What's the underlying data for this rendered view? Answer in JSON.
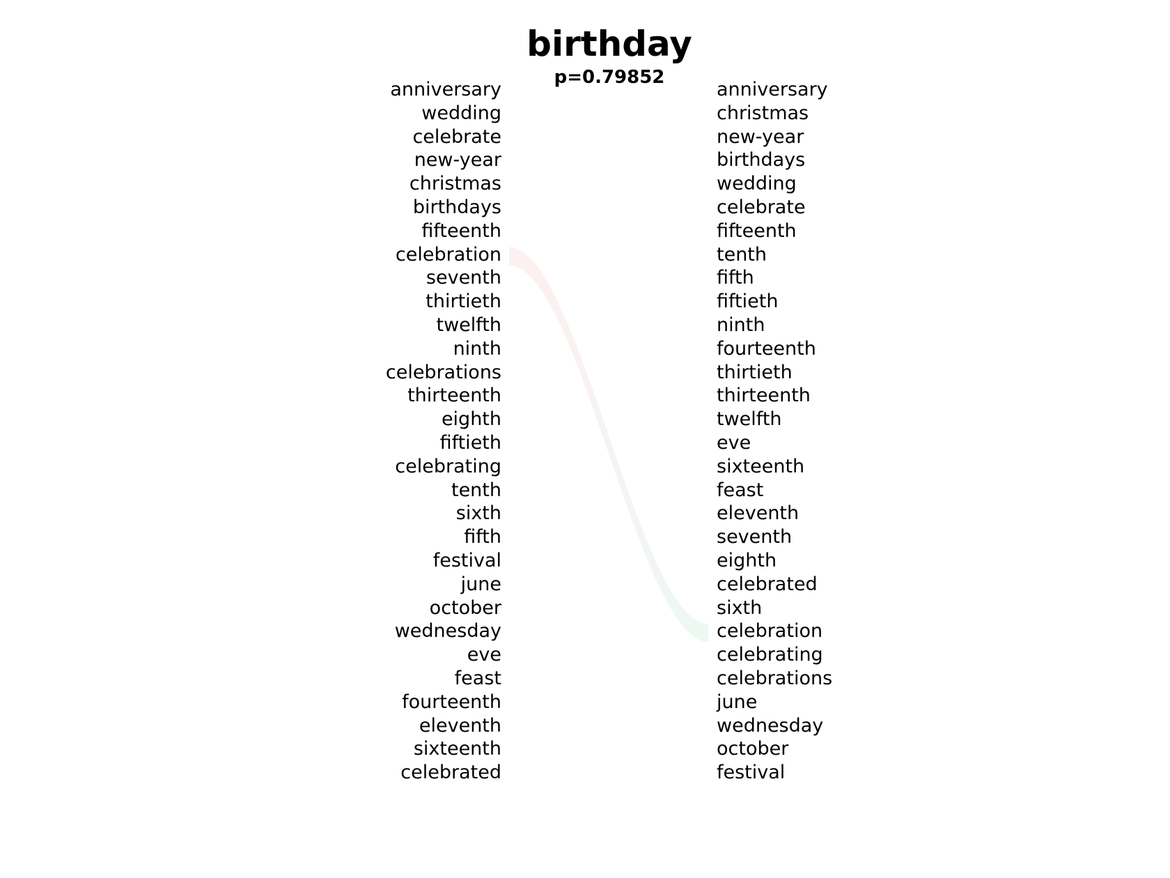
{
  "title": "birthday",
  "subtitle": "p=0.79852",
  "left_words": [
    "anniversary",
    "wedding",
    "celebrate",
    "new-year",
    "christmas",
    "birthdays",
    "fifteenth",
    "celebration",
    "seventh",
    "thirtieth",
    "twelfth",
    "ninth",
    "celebrations",
    "thirteenth",
    "eighth",
    "fiftieth",
    "celebrating",
    "tenth",
    "sixth",
    "fifth",
    "festival",
    "june",
    "october",
    "wednesday",
    "eve",
    "feast",
    "fourteenth",
    "eleventh",
    "sixteenth",
    "celebrated"
  ],
  "right_words": [
    "anniversary",
    "christmas",
    "new-year",
    "birthdays",
    "wedding",
    "celebrate",
    "fifteenth",
    "tenth",
    "fifth",
    "fiftieth",
    "ninth",
    "fourteenth",
    "thirtieth",
    "thirteenth",
    "twelfth",
    "eve",
    "sixteenth",
    "feast",
    "eleventh",
    "seventh",
    "eighth",
    "celebrated",
    "sixth",
    "celebration",
    "celebrating",
    "celebrations",
    "june",
    "wednesday",
    "october",
    "festival"
  ],
  "links": [
    {
      "word": "celebration",
      "from_rank": 8,
      "to_rank": 24,
      "color_start": "#fdf0f0",
      "color_end": "#eef8f3"
    }
  ]
}
